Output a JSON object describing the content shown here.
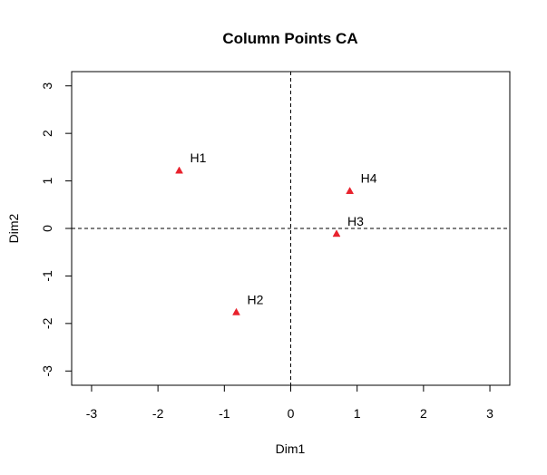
{
  "chart_data": {
    "type": "scatter",
    "title": "Column Points CA",
    "xlabel": "Dim1",
    "ylabel": "Dim2",
    "xlim": [
      -3.3,
      3.3
    ],
    "ylim": [
      -3.3,
      3.3
    ],
    "xticks": [
      "-3",
      "-2",
      "-1",
      "0",
      "1",
      "2",
      "3"
    ],
    "yticks": [
      "-3",
      "-2",
      "-1",
      "0",
      "1",
      "2",
      "3"
    ],
    "reference_lines": {
      "x": 0,
      "y": 0,
      "style": "dashed"
    },
    "grid": false,
    "marker": "triangle",
    "marker_color": "#E8222D",
    "points": [
      {
        "label": "H1",
        "x": -1.68,
        "y": 1.22
      },
      {
        "label": "H2",
        "x": -0.82,
        "y": -1.76
      },
      {
        "label": "H3",
        "x": 0.69,
        "y": -0.11
      },
      {
        "label": "H4",
        "x": 0.89,
        "y": 0.79
      }
    ]
  }
}
